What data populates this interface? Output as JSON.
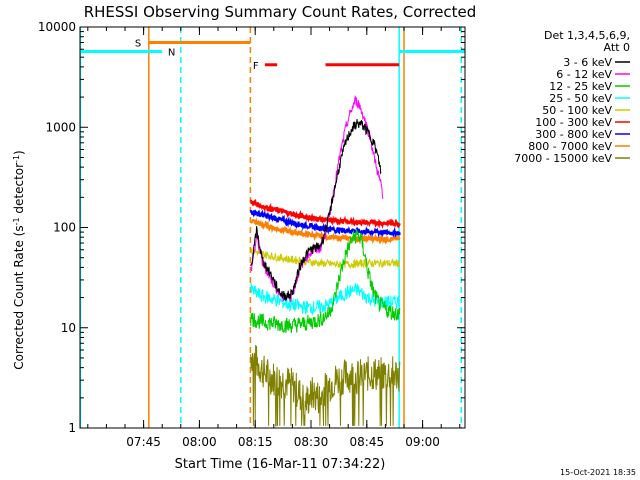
{
  "chart_data": {
    "type": "line",
    "title": "RHESSI Observing Summary Count Rates, Corrected",
    "xlabel": "Start Time (16-Mar-11 07:34:22)",
    "ylabel_main": "Corrected Count Rate (s",
    "ylabel_sup1": "-1",
    "ylabel_mid": " detector",
    "ylabel_sup2": "-1",
    "ylabel_end": ")",
    "y_scale": "log",
    "ylim": [
      1,
      10000
    ],
    "xlim_minutes": [
      -6.5,
      97
    ],
    "x_ticks": [
      {
        "label": "07:45",
        "t": 10.6
      },
      {
        "label": "08:00",
        "t": 25.6
      },
      {
        "label": "08:15",
        "t": 40.6
      },
      {
        "label": "08:30",
        "t": 55.6
      },
      {
        "label": "08:45",
        "t": 70.6
      },
      {
        "label": "09:00",
        "t": 85.6
      }
    ],
    "y_ticks": [
      {
        "label": "1",
        "v": 1
      },
      {
        "label": "10",
        "v": 10
      },
      {
        "label": "100",
        "v": 100
      },
      {
        "label": "1000",
        "v": 1000
      },
      {
        "label": "10000",
        "v": 10000
      }
    ],
    "legend": {
      "header": [
        "Det 1,3,4,5,6,9,",
        "Att 0"
      ],
      "placement": "right"
    },
    "series": [
      {
        "name": "3 - 6 keV",
        "color": "#000000",
        "points": [
          [
            39.4,
            40
          ],
          [
            40.5,
            70
          ],
          [
            41,
            95
          ],
          [
            41.5,
            75
          ],
          [
            42.5,
            48
          ],
          [
            44,
            38
          ],
          [
            45,
            33
          ],
          [
            46.5,
            25
          ],
          [
            48,
            21
          ],
          [
            50,
            21
          ],
          [
            51,
            25
          ],
          [
            52.5,
            40
          ],
          [
            54,
            52
          ],
          [
            55.5,
            60
          ],
          [
            57,
            63
          ],
          [
            58,
            65
          ],
          [
            59,
            80
          ],
          [
            60.5,
            130
          ],
          [
            62,
            250
          ],
          [
            63.5,
            450
          ],
          [
            65,
            720
          ],
          [
            66.5,
            950
          ],
          [
            68,
            1100
          ],
          [
            69.5,
            1050
          ],
          [
            71,
            880
          ],
          [
            72.5,
            700
          ],
          [
            73.5,
            520
          ],
          [
            74.5,
            350
          ]
        ]
      },
      {
        "name": "6 - 12 keV",
        "color": "#ff00ff",
        "points": [
          [
            39.4,
            36
          ],
          [
            40.5,
            62
          ],
          [
            41,
            80
          ],
          [
            41.5,
            68
          ],
          [
            42.5,
            45
          ],
          [
            44,
            35
          ],
          [
            45,
            30
          ],
          [
            46.5,
            24
          ],
          [
            48,
            20
          ],
          [
            50,
            20
          ],
          [
            51,
            24
          ],
          [
            52.5,
            38
          ],
          [
            54,
            50
          ],
          [
            55.5,
            57
          ],
          [
            57,
            60
          ],
          [
            58,
            62
          ],
          [
            59,
            75
          ],
          [
            60.5,
            130
          ],
          [
            62,
            270
          ],
          [
            63.5,
            550
          ],
          [
            65,
            1000
          ],
          [
            66.5,
            1500
          ],
          [
            67.5,
            1850
          ],
          [
            68.5,
            1700
          ],
          [
            70,
            1200
          ],
          [
            71.5,
            800
          ],
          [
            72.5,
            520
          ],
          [
            73.5,
            360
          ],
          [
            74.5,
            260
          ],
          [
            75,
            180
          ]
        ]
      },
      {
        "name": "12 - 25 keV",
        "color": "#00cc00",
        "points": [
          [
            39.4,
            12.5
          ],
          [
            42,
            11.5
          ],
          [
            46,
            11
          ],
          [
            50,
            10.5
          ],
          [
            54,
            11
          ],
          [
            58,
            12
          ],
          [
            60.5,
            14
          ],
          [
            62,
            20
          ],
          [
            63.5,
            35
          ],
          [
            65,
            55
          ],
          [
            66.5,
            75
          ],
          [
            68,
            85
          ],
          [
            69,
            78
          ],
          [
            70,
            55
          ],
          [
            71,
            35
          ],
          [
            72.5,
            22
          ],
          [
            74,
            17
          ],
          [
            76,
            15
          ],
          [
            78,
            14
          ],
          [
            79.5,
            14
          ]
        ]
      },
      {
        "name": "25 - 50 keV",
        "color": "#00ffff",
        "points": [
          [
            39.4,
            24
          ],
          [
            42,
            21
          ],
          [
            46,
            19
          ],
          [
            50,
            17
          ],
          [
            54,
            16
          ],
          [
            58,
            16
          ],
          [
            60.5,
            17
          ],
          [
            62,
            19
          ],
          [
            64,
            21
          ],
          [
            66,
            23
          ],
          [
            68,
            24
          ],
          [
            70,
            21
          ],
          [
            72,
            19
          ],
          [
            74,
            18
          ],
          [
            76,
            18
          ],
          [
            78,
            18
          ],
          [
            79.5,
            18
          ]
        ]
      },
      {
        "name": "50 - 100 keV",
        "color": "#cccc00",
        "points": [
          [
            39.4,
            60
          ],
          [
            42,
            55
          ],
          [
            46,
            51
          ],
          [
            50,
            48
          ],
          [
            54,
            46
          ],
          [
            58,
            44
          ],
          [
            62,
            43
          ],
          [
            66,
            43
          ],
          [
            70,
            44
          ],
          [
            74,
            44
          ],
          [
            79.5,
            44
          ]
        ]
      },
      {
        "name": "100 - 300 keV",
        "color": "#ff0000",
        "points": [
          [
            39.4,
            180
          ],
          [
            42,
            165
          ],
          [
            46,
            150
          ],
          [
            50,
            138
          ],
          [
            54,
            128
          ],
          [
            58,
            121
          ],
          [
            62,
            117
          ],
          [
            66,
            114
          ],
          [
            70,
            112
          ],
          [
            74,
            111
          ],
          [
            79.5,
            110
          ]
        ]
      },
      {
        "name": "300 - 800 keV",
        "color": "#0000ff",
        "points": [
          [
            39.4,
            145
          ],
          [
            42,
            135
          ],
          [
            46,
            123
          ],
          [
            50,
            113
          ],
          [
            54,
            105
          ],
          [
            58,
            99
          ],
          [
            62,
            95
          ],
          [
            66,
            93
          ],
          [
            70,
            91
          ],
          [
            74,
            90
          ],
          [
            79.5,
            88
          ]
        ]
      },
      {
        "name": "800 - 7000 keV",
        "color": "#ff8000",
        "points": [
          [
            39.4,
            118
          ],
          [
            42,
            108
          ],
          [
            46,
            98
          ],
          [
            50,
            91
          ],
          [
            54,
            86
          ],
          [
            58,
            82
          ],
          [
            62,
            79
          ],
          [
            66,
            78
          ],
          [
            70,
            77
          ],
          [
            74,
            77
          ],
          [
            79.5,
            77
          ]
        ]
      },
      {
        "name": "7000 - 15000 keV",
        "color": "#808000",
        "points": [
          [
            39.4,
            5.5
          ],
          [
            41,
            4.5
          ],
          [
            43,
            3.6
          ],
          [
            45,
            3.2
          ],
          [
            47,
            3
          ],
          [
            49,
            2.9
          ],
          [
            51,
            2.6
          ],
          [
            52.5,
            2.2
          ],
          [
            54,
            1.8
          ],
          [
            56,
            2.2
          ],
          [
            58,
            2.0
          ],
          [
            60,
            2.6
          ],
          [
            62,
            3.0
          ],
          [
            64,
            3.2
          ],
          [
            66,
            3.4
          ],
          [
            68,
            3.2
          ],
          [
            70,
            3.4
          ],
          [
            72,
            3.5
          ],
          [
            74,
            3.4
          ],
          [
            76,
            3.5
          ],
          [
            78,
            3.5
          ],
          [
            79.5,
            3.4
          ]
        ]
      }
    ],
    "annotations": {
      "S": {
        "label": "S",
        "color": "#ff8000",
        "t_start": 12.0,
        "t_end": 39.3
      },
      "N": {
        "label": "N",
        "color": "#00ffff",
        "spans": [
          [
            -6.5,
            15.5
          ],
          [
            79.3,
            97
          ]
        ]
      },
      "F": {
        "label": "F",
        "color": "#ff0000",
        "spans": [
          [
            43.2,
            46.5
          ],
          [
            59.5,
            79.3
          ]
        ]
      }
    },
    "vlines": [
      {
        "t": -6.4,
        "color": "#00ffff",
        "style": "solid"
      },
      {
        "t": 12.0,
        "color": "#ff8000",
        "style": "solid"
      },
      {
        "t": 20.6,
        "color": "#00ffff",
        "style": "dashed"
      },
      {
        "t": 39.3,
        "color": "#ff8000",
        "style": "dashed"
      },
      {
        "t": 79.3,
        "color": "#00ffff",
        "style": "solid"
      },
      {
        "t": 80.6,
        "color": "#ff8000",
        "style": "solid"
      },
      {
        "t": 96.0,
        "color": "#00ffff",
        "style": "dashed"
      }
    ],
    "footer_date": "15-Oct-2021 18:35"
  }
}
